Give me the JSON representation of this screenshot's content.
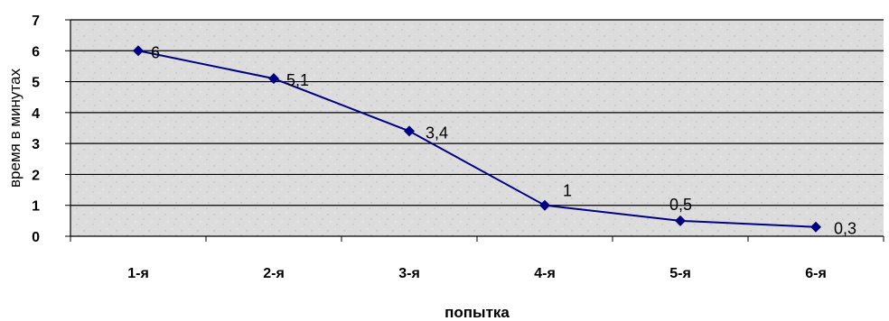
{
  "chart_data": {
    "type": "line",
    "categories": [
      "1-я",
      "2-я",
      "3-я",
      "4-я",
      "5-я",
      "6-я"
    ],
    "values": [
      6,
      5.1,
      3.4,
      1,
      0.5,
      0.3
    ],
    "data_labels": [
      "6",
      "5,1",
      "3,4",
      "1",
      "0,5",
      "0,3"
    ],
    "xlabel": "попытка",
    "ylabel": "время в минутах",
    "ylim": [
      0,
      7
    ],
    "yticks": [
      "0",
      "1",
      "2",
      "3",
      "4",
      "5",
      "6",
      "7"
    ],
    "grid": true,
    "series_color": "#000080",
    "background": "textured light gray"
  }
}
